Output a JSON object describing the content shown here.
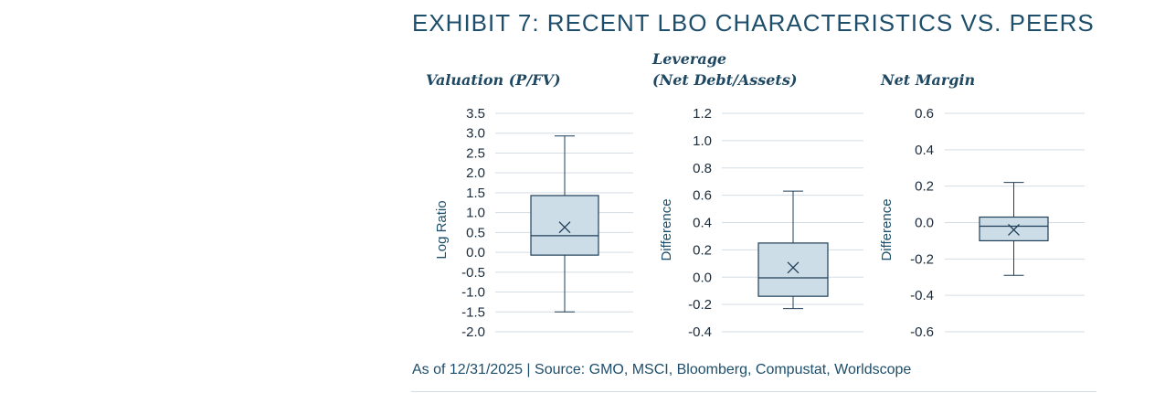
{
  "title": "EXHIBIT 7: RECENT LBO CHARACTERISTICS VS. PEERS",
  "source": "As of 12/31/2025 | Source: GMO, MSCI, Bloomberg, Compustat, Worldscope",
  "colors": {
    "box_fill": "#ccdde7",
    "box_stroke": "#1f3f58",
    "grid": "#d3dde5",
    "title": "#1d4e6b"
  },
  "chart_data": [
    {
      "type": "box",
      "title_lines": [
        "Valuation (P/FV)"
      ],
      "ylabel": "Log Ratio",
      "ylim": [
        -2.0,
        3.5
      ],
      "ticks": [
        "3.5",
        "3.0",
        "2.5",
        "2.0",
        "1.5",
        "1.0",
        "0.5",
        "0.0",
        "-0.5",
        "-1.0",
        "-1.5",
        "-2.0"
      ],
      "whisker_low": -1.5,
      "q1": -0.07,
      "median": 0.42,
      "mean": 0.63,
      "q3": 1.43,
      "whisker_high": 2.93
    },
    {
      "type": "box",
      "title_lines": [
        "Leverage",
        "(Net Debt/Assets)"
      ],
      "ylabel": "Difference",
      "ylim": [
        -0.4,
        1.2
      ],
      "ticks": [
        "1.2",
        "1.0",
        "0.8",
        "0.6",
        "0.4",
        "0.2",
        "0.0",
        "-0.2",
        "-0.4"
      ],
      "whisker_low": -0.23,
      "q1": -0.14,
      "median": -0.005,
      "mean": 0.07,
      "q3": 0.25,
      "whisker_high": 0.63
    },
    {
      "type": "box",
      "title_lines": [
        "Net Margin"
      ],
      "ylabel": "Difference",
      "ylim": [
        -0.6,
        0.6
      ],
      "ticks": [
        "0.6",
        "0.4",
        "0.2",
        "0.0",
        "-0.2",
        "-0.4",
        "-0.6"
      ],
      "whisker_low": -0.29,
      "q1": -0.1,
      "median": -0.02,
      "mean": -0.04,
      "q3": 0.03,
      "whisker_high": 0.22
    }
  ]
}
